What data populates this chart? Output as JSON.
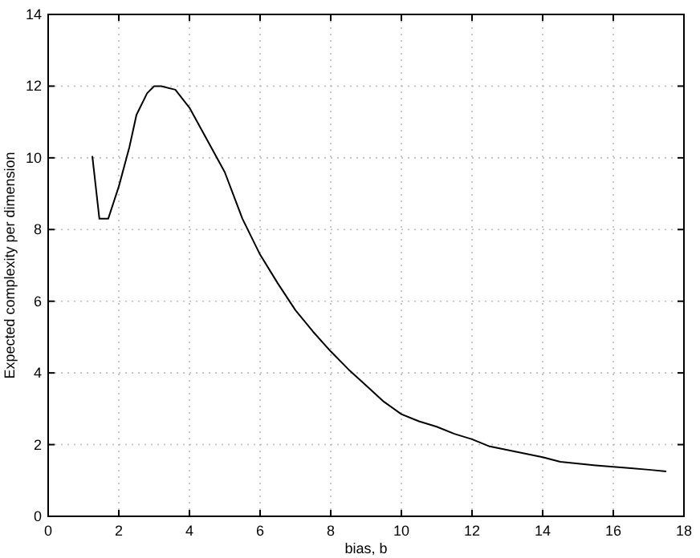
{
  "chart_data": {
    "type": "line",
    "xlabel": "bias, b",
    "ylabel": "Expected complexity per dimension",
    "x": [
      1.25,
      1.45,
      1.7,
      2,
      2.3,
      2.5,
      2.8,
      3.0,
      3.2,
      3.6,
      4.0,
      4.5,
      5.0,
      5.5,
      6,
      6.5,
      7,
      7.5,
      8,
      8.5,
      9,
      9.5,
      10,
      10.5,
      11,
      11.5,
      12,
      12.5,
      13,
      13.5,
      14,
      14.5,
      15,
      15.5,
      16,
      16.5,
      17,
      17.5
    ],
    "series": [
      {
        "color": "#000000",
        "values": [
          10.05,
          8.3,
          8.3,
          9.2,
          10.3,
          11.2,
          11.8,
          12.0,
          12.0,
          11.9,
          11.4,
          10.5,
          9.6,
          8.3,
          7.3,
          6.5,
          5.75,
          5.15,
          4.6,
          4.1,
          3.65,
          3.2,
          2.85,
          2.65,
          2.5,
          2.3,
          2.15,
          1.95,
          1.85,
          1.75,
          1.65,
          1.52,
          1.47,
          1.42,
          1.38,
          1.34,
          1.3,
          1.25
        ]
      }
    ],
    "xlim": [
      0,
      18
    ],
    "xticks": [
      0,
      2,
      4,
      6,
      8,
      10,
      12,
      14,
      16,
      18
    ],
    "ylim": [
      0,
      14
    ],
    "yticks": [
      0,
      2,
      4,
      6,
      8,
      10,
      12,
      14
    ],
    "grid": true,
    "marker": "none",
    "line_style": "solid"
  }
}
